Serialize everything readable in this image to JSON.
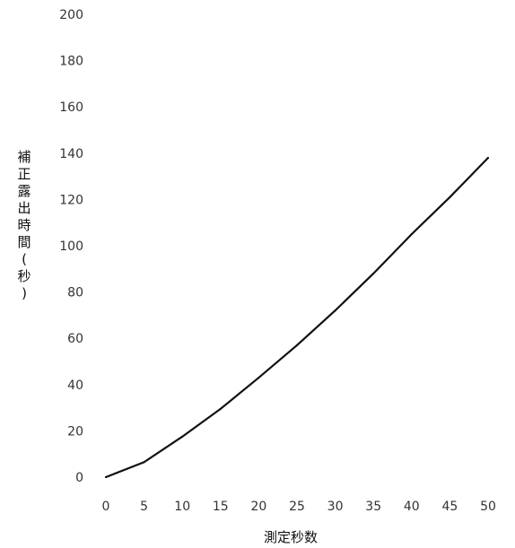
{
  "chart_data": {
    "type": "line",
    "xlabel": "測定秒数",
    "ylabel": "補正露出時間(秒)",
    "xlim": [
      0,
      50
    ],
    "ylim": [
      0,
      200
    ],
    "x_ticks": [
      "0",
      "5",
      "10",
      "15",
      "20",
      "25",
      "30",
      "35",
      "40",
      "45",
      "50"
    ],
    "y_ticks": [
      "0",
      "20",
      "40",
      "60",
      "80",
      "100",
      "120",
      "140",
      "160",
      "180",
      "200"
    ],
    "grid": false,
    "legend": "none",
    "series": [
      {
        "x": [
          0,
          5,
          10,
          15,
          20,
          25,
          30,
          35,
          40,
          45,
          50
        ],
        "y": [
          0,
          6.5,
          17.5,
          29.5,
          43,
          57,
          72,
          88,
          105,
          121,
          138
        ]
      }
    ],
    "line_color": "#111111"
  }
}
